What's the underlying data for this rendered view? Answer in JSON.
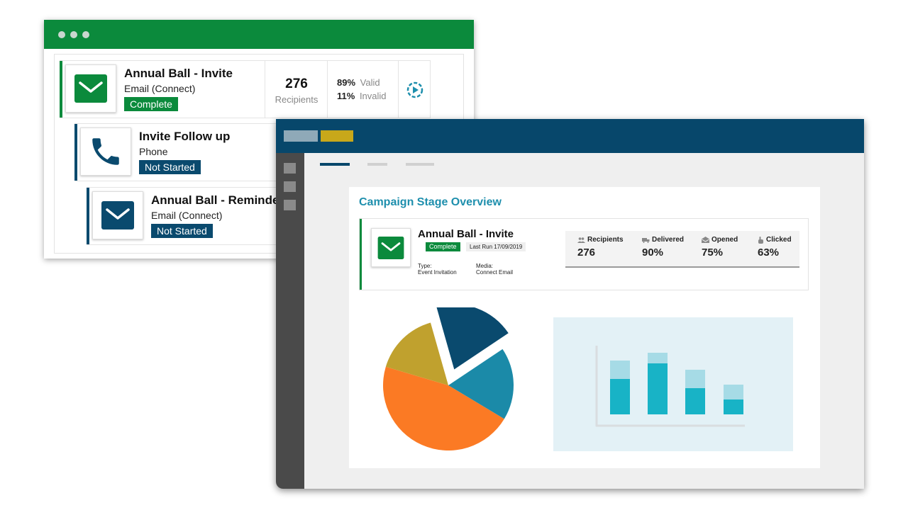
{
  "back_window": {
    "rows": [
      {
        "title": "Annual Ball - Invite",
        "subtitle": "Email (Connect)",
        "status": "Complete",
        "icon": "envelope-icon",
        "recipients_count": "276",
        "recipients_label": "Recipients",
        "valid_pct": "89%",
        "valid_label": "Valid",
        "invalid_pct": "11%",
        "invalid_label": "Invalid"
      },
      {
        "title": "Invite Follow up",
        "subtitle": "Phone",
        "status": "Not Started",
        "icon": "phone-icon"
      },
      {
        "title": "Annual Ball - Reminder",
        "subtitle": "Email (Connect)",
        "status": "Not Started",
        "icon": "envelope-icon"
      }
    ]
  },
  "front_window": {
    "card_title": "Campaign Stage Overview",
    "campaign": {
      "title": "Annual Ball - Invite",
      "status": "Complete",
      "last_run": "Last Run 17/09/2019",
      "type_label": "Type:",
      "type_value": "Event Invitation",
      "media_label": "Media:",
      "media_value": "Connect Email"
    },
    "stats": [
      {
        "label": "Recipients",
        "value": "276",
        "icon": "people-icon"
      },
      {
        "label": "Delivered",
        "value": "90%",
        "icon": "truck-icon"
      },
      {
        "label": "Opened",
        "value": "75%",
        "icon": "open-envelope-icon"
      },
      {
        "label": "Clicked",
        "value": "63%",
        "icon": "pointer-icon"
      }
    ]
  },
  "colors": {
    "green": "#0b8a3c",
    "navy": "#0a4a6e",
    "teal": "#1e8fad",
    "orange": "#fb7a24",
    "olive": "#c0a12e",
    "bar_dark": "#18b3c6",
    "bar_light": "#a6dbe6"
  },
  "chart_data": [
    {
      "type": "pie",
      "slices": [
        {
          "color": "#fb7a24",
          "value": 46
        },
        {
          "color": "#c0a12e",
          "value": 16
        },
        {
          "color": "#0a4a6e",
          "value": 20,
          "exploded": true
        },
        {
          "color": "#1b8aa8",
          "value": 18
        }
      ]
    },
    {
      "type": "bar",
      "stacked": true,
      "series": [
        {
          "values": [
            50,
            72,
            37,
            21
          ]
        },
        {
          "values": [
            26,
            15,
            26,
            21
          ]
        }
      ]
    }
  ]
}
